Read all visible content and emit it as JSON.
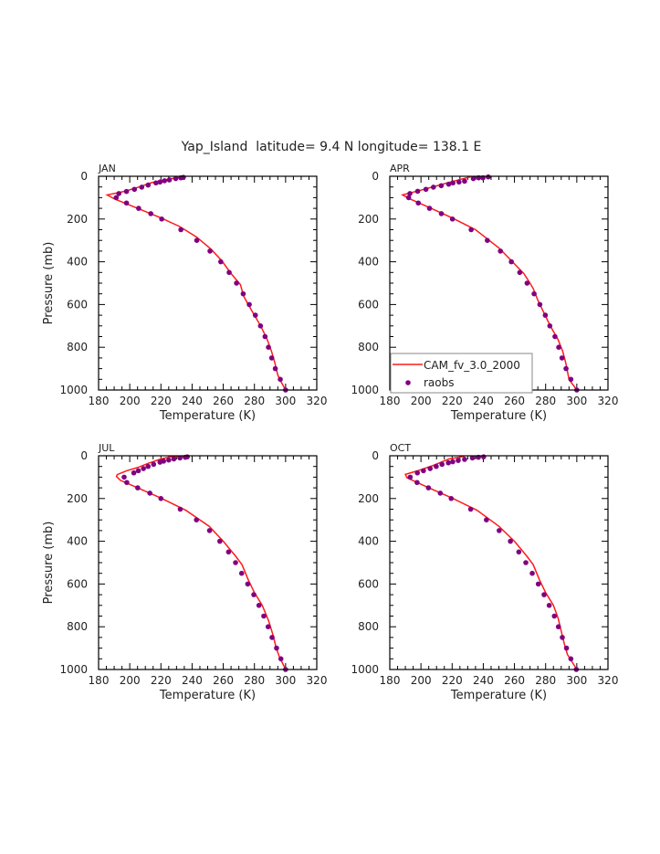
{
  "title": "Yap_Island  latitude= 9.4 N longitude= 138.1 E",
  "colors": {
    "model": "#ff1a1a",
    "obs": "#800080",
    "axis": "#000000"
  },
  "legend": {
    "model_label": "CAM_fv_3.0_2000",
    "obs_label": "raobs",
    "placement": "bottom-left of APR panel"
  },
  "chart_data": [
    {
      "type": "line",
      "title": "JAN",
      "xlabel": "Temperature (K)",
      "ylabel": "Pressure (mb)",
      "xlim": [
        180,
        320
      ],
      "ylim": [
        1000,
        0
      ],
      "xticks": [
        "180",
        "200",
        "220",
        "240",
        "260",
        "280",
        "300",
        "320"
      ],
      "yticks": [
        "0",
        "200",
        "400",
        "600",
        "800",
        "1000"
      ],
      "series": [
        {
          "name": "CAM_fv_3.0_2000",
          "kind": "line",
          "points": [
            [
              234,
              3
            ],
            [
              226,
              12
            ],
            [
              214,
              30
            ],
            [
              206,
              50
            ],
            [
              197,
              70
            ],
            [
              185.5,
              87
            ],
            [
              190,
              105
            ],
            [
              200,
              135
            ],
            [
              210,
              165
            ],
            [
              220,
              195
            ],
            [
              232,
              235
            ],
            [
              243,
              285
            ],
            [
              252,
              340
            ],
            [
              259,
              395
            ],
            [
              265,
              455
            ],
            [
              271,
              507
            ],
            [
              273,
              560
            ],
            [
              276,
              600
            ],
            [
              280,
              650
            ],
            [
              284,
              700
            ],
            [
              288,
              760
            ],
            [
              291,
              820
            ],
            [
              293,
              870
            ],
            [
              295,
              930
            ],
            [
              297,
              960
            ],
            [
              300,
              1000
            ]
          ]
        },
        {
          "name": "raobs",
          "kind": "scatter",
          "points": [
            [
              300,
              1000
            ],
            [
              296.6,
              950
            ],
            [
              293.4,
              900
            ],
            [
              291.1,
              850
            ],
            [
              289,
              800
            ],
            [
              286.8,
              750
            ],
            [
              283.9,
              700
            ],
            [
              280.6,
              650
            ],
            [
              276.7,
              600
            ],
            [
              272.8,
              550
            ],
            [
              268.5,
              500
            ],
            [
              263.8,
              450
            ],
            [
              258.4,
              400
            ],
            [
              251.5,
              350
            ],
            [
              243,
              300
            ],
            [
              232.8,
              250
            ],
            [
              220.5,
              200
            ],
            [
              213.5,
              175
            ],
            [
              205.7,
              150
            ],
            [
              197.9,
              125
            ],
            [
              191.3,
              100
            ],
            [
              193,
              81
            ],
            [
              197.9,
              71
            ],
            [
              203,
              61
            ],
            [
              207.7,
              51
            ],
            [
              211.8,
              41
            ],
            [
              216.8,
              31
            ],
            [
              219.4,
              27
            ],
            [
              222.3,
              21
            ],
            [
              225.4,
              17
            ],
            [
              229.5,
              11
            ],
            [
              232.8,
              7
            ],
            [
              234.4,
              5
            ]
          ]
        }
      ]
    },
    {
      "type": "line",
      "title": "APR",
      "xlabel": "Temperature (K)",
      "ylabel": "",
      "xlim": [
        180,
        320
      ],
      "ylim": [
        1000,
        0
      ],
      "xticks": [
        "180",
        "200",
        "220",
        "240",
        "260",
        "280",
        "300",
        "320"
      ],
      "yticks": [
        "0",
        "200",
        "400",
        "600",
        "800",
        "1000"
      ],
      "series": [
        {
          "name": "CAM_fv_3.0_2000",
          "kind": "line",
          "points": [
            [
              232,
              2
            ],
            [
              220,
              25
            ],
            [
              210,
              45
            ],
            [
              200,
              65
            ],
            [
              188.2,
              87
            ],
            [
              192,
              103
            ],
            [
              205,
              145
            ],
            [
              220,
              195
            ],
            [
              235,
              250
            ],
            [
              250,
              335
            ],
            [
              258,
              395
            ],
            [
              266,
              455
            ],
            [
              270,
              500
            ],
            [
              272,
              525
            ],
            [
              275,
              580
            ],
            [
              279,
              640
            ],
            [
              283,
              700
            ],
            [
              288,
              765
            ],
            [
              291,
              820
            ],
            [
              293,
              875
            ],
            [
              295,
              950
            ],
            [
              300,
              1000
            ]
          ]
        },
        {
          "name": "raobs",
          "kind": "scatter",
          "points": [
            [
              300,
              1000
            ],
            [
              296.2,
              950
            ],
            [
              293.1,
              900
            ],
            [
              290.5,
              850
            ],
            [
              288.4,
              800
            ],
            [
              286,
              750
            ],
            [
              282.7,
              700
            ],
            [
              279.8,
              650
            ],
            [
              276.3,
              600
            ],
            [
              272.6,
              550
            ],
            [
              268.1,
              500
            ],
            [
              263.4,
              450
            ],
            [
              258,
              400
            ],
            [
              251,
              350
            ],
            [
              242.6,
              300
            ],
            [
              232.2,
              250
            ],
            [
              220.2,
              200
            ],
            [
              213.1,
              175
            ],
            [
              205.5,
              150
            ],
            [
              198.3,
              125
            ],
            [
              192.1,
              100
            ],
            [
              192.9,
              81
            ],
            [
              197.9,
              70
            ],
            [
              203.2,
              61
            ],
            [
              208,
              51
            ],
            [
              213,
              44
            ],
            [
              217.8,
              37
            ],
            [
              220.5,
              31
            ],
            [
              224.4,
              27
            ],
            [
              228,
              23
            ],
            [
              233.6,
              11
            ],
            [
              237,
              7
            ],
            [
              239.8,
              7
            ],
            [
              243.2,
              3
            ]
          ]
        }
      ]
    },
    {
      "type": "line",
      "title": "JUL",
      "xlabel": "Temperature (K)",
      "ylabel": "Pressure (mb)",
      "xlim": [
        180,
        320
      ],
      "ylim": [
        1000,
        0
      ],
      "xticks": [
        "180",
        "200",
        "220",
        "240",
        "260",
        "280",
        "300",
        "320"
      ],
      "yticks": [
        "0",
        "200",
        "400",
        "600",
        "800",
        "1000"
      ],
      "series": [
        {
          "name": "CAM_fv_3.0_2000",
          "kind": "line",
          "points": [
            [
              236,
              2
            ],
            [
              226,
              5
            ],
            [
              220,
              15
            ],
            [
              212,
              35
            ],
            [
              205,
              55
            ],
            [
              198,
              70
            ],
            [
              192,
              88
            ],
            [
              191.5,
              97
            ],
            [
              194,
              115
            ],
            [
              205,
              150
            ],
            [
              220,
              198
            ],
            [
              236,
              255
            ],
            [
              251,
              330
            ],
            [
              260,
              400
            ],
            [
              268,
              470
            ],
            [
              272,
              510
            ],
            [
              276,
              580
            ],
            [
              280,
              640
            ],
            [
              285,
              700
            ],
            [
              289,
              770
            ],
            [
              292,
              840
            ],
            [
              294,
              900
            ],
            [
              296,
              940
            ],
            [
              300,
              1000
            ]
          ]
        },
        {
          "name": "raobs",
          "kind": "scatter",
          "points": [
            [
              300,
              1000
            ],
            [
              297,
              950
            ],
            [
              294.2,
              900
            ],
            [
              291.3,
              850
            ],
            [
              288.8,
              800
            ],
            [
              286,
              750
            ],
            [
              282.9,
              700
            ],
            [
              279.6,
              650
            ],
            [
              275.7,
              600
            ],
            [
              271.8,
              550
            ],
            [
              267.9,
              500
            ],
            [
              263.4,
              450
            ],
            [
              257.8,
              400
            ],
            [
              251.2,
              350
            ],
            [
              242.8,
              300
            ],
            [
              232.4,
              250
            ],
            [
              220,
              200
            ],
            [
              212.9,
              175
            ],
            [
              205.1,
              150
            ],
            [
              198.1,
              125
            ],
            [
              196.4,
              100
            ],
            [
              202.6,
              80
            ],
            [
              205.5,
              70
            ],
            [
              208.8,
              60
            ],
            [
              211.8,
              50
            ],
            [
              215.3,
              40
            ],
            [
              219.4,
              30
            ],
            [
              221.7,
              25
            ],
            [
              225,
              20
            ],
            [
              228.3,
              15
            ],
            [
              232.2,
              10
            ],
            [
              235.6,
              7
            ],
            [
              236.9,
              5
            ]
          ]
        }
      ]
    },
    {
      "type": "line",
      "title": "OCT",
      "xlabel": "Temperature (K)",
      "ylabel": "",
      "xlim": [
        180,
        320
      ],
      "ylim": [
        1000,
        0
      ],
      "xticks": [
        "180",
        "200",
        "220",
        "240",
        "260",
        "280",
        "300",
        "320"
      ],
      "yticks": [
        "0",
        "200",
        "400",
        "600",
        "800",
        "1000"
      ],
      "series": [
        {
          "name": "CAM_fv_3.0_2000",
          "kind": "line",
          "points": [
            [
              228,
              2
            ],
            [
              218,
              15
            ],
            [
              208,
              45
            ],
            [
              198,
              70
            ],
            [
              190,
              87
            ],
            [
              191,
              103
            ],
            [
              205,
              150
            ],
            [
              220,
              198
            ],
            [
              236,
              255
            ],
            [
              250,
              330
            ],
            [
              260,
              400
            ],
            [
              268,
              470
            ],
            [
              272,
              510
            ],
            [
              276,
              580
            ],
            [
              280,
              640
            ],
            [
              285,
              700
            ],
            [
              288,
              760
            ],
            [
              290,
              820
            ],
            [
              292,
              880
            ],
            [
              294,
              930
            ],
            [
              300,
              1000
            ]
          ]
        },
        {
          "name": "raobs",
          "kind": "scatter",
          "points": [
            [
              299.7,
              1000
            ],
            [
              296.2,
              950
            ],
            [
              293.4,
              900
            ],
            [
              290.7,
              850
            ],
            [
              288.2,
              800
            ],
            [
              285.6,
              750
            ],
            [
              282.3,
              700
            ],
            [
              279,
              650
            ],
            [
              275.3,
              600
            ],
            [
              271.4,
              550
            ],
            [
              267.3,
              500
            ],
            [
              262.8,
              450
            ],
            [
              257.4,
              400
            ],
            [
              250.2,
              350
            ],
            [
              242,
              300
            ],
            [
              231.9,
              250
            ],
            [
              219.4,
              200
            ],
            [
              212.4,
              175
            ],
            [
              204.8,
              150
            ],
            [
              197.5,
              125
            ],
            [
              193.1,
              100
            ],
            [
              197.7,
              80
            ],
            [
              201.6,
              70
            ],
            [
              205.9,
              60
            ],
            [
              209.8,
              50
            ],
            [
              213.5,
              40
            ],
            [
              217.6,
              33
            ],
            [
              220.4,
              28
            ],
            [
              223.9,
              22
            ],
            [
              228,
              17
            ],
            [
              233,
              10
            ],
            [
              236.9,
              7
            ],
            [
              240.2,
              5
            ]
          ]
        }
      ]
    }
  ]
}
